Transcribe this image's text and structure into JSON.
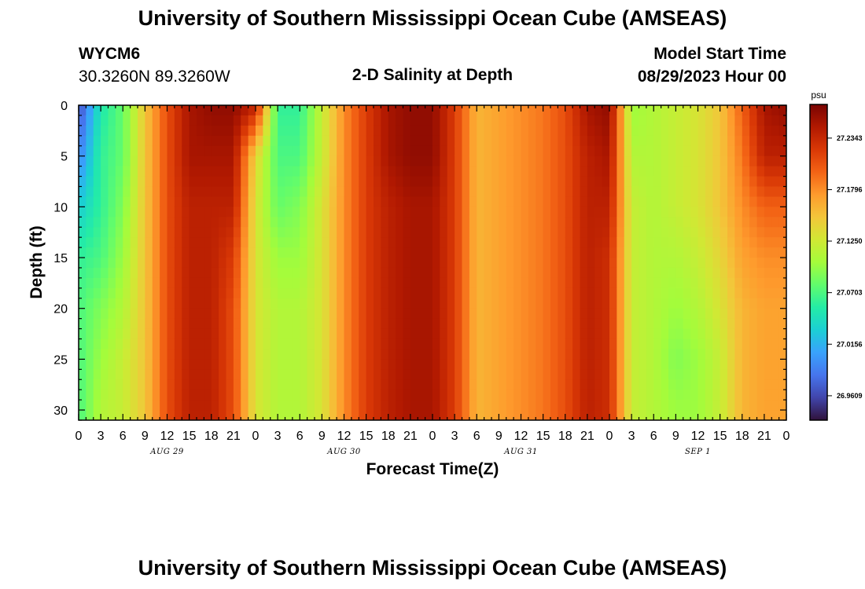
{
  "header": {
    "title": "University of Southern Mississippi Ocean Cube (AMSEAS)",
    "station_id": "WYCM6",
    "coordinates": "30.3260N  89.3260W",
    "subtitle": "2-D Salinity at Depth",
    "model_start_label": "Model Start Time",
    "model_start_value": "08/29/2023 Hour 00"
  },
  "footer": {
    "title": "University of Southern Mississippi Ocean Cube (AMSEAS)"
  },
  "colorbar": {
    "unit": "psu",
    "tick_labels": [
      "27.2343",
      "27.1796",
      "27.1250",
      "27.0703",
      "27.0156",
      "26.9609"
    ],
    "tick_values": [
      27.2343,
      27.1796,
      27.125,
      27.0703,
      27.0156,
      26.9609
    ],
    "range": [
      26.935,
      27.27
    ],
    "palette": [
      "#30123b",
      "#4145ab",
      "#4675ed",
      "#39a2fc",
      "#1bcfd4",
      "#24eca6",
      "#61fc6c",
      "#a4fc3b",
      "#d1e834",
      "#f3c63a",
      "#fe9b2d",
      "#f36315",
      "#d93806",
      "#b11901",
      "#7a0402"
    ]
  },
  "chart_data": {
    "type": "heatmap",
    "title": "2-D Salinity at Depth",
    "xlabel": "Forecast Time(Z)",
    "ylabel": "Depth (ft)",
    "x_unit": "forecast hour",
    "xlim": [
      0,
      96
    ],
    "ylim": [
      0,
      31
    ],
    "x_tick_labels": [
      "0",
      "3",
      "6",
      "9",
      "12",
      "15",
      "18",
      "21",
      "0",
      "3",
      "6",
      "9",
      "12",
      "15",
      "18",
      "21",
      "0",
      "3",
      "6",
      "9",
      "12",
      "15",
      "18",
      "21",
      "0",
      "3",
      "6",
      "9",
      "12",
      "15",
      "18",
      "21",
      "0"
    ],
    "y_tick_labels": [
      "0",
      "5",
      "10",
      "15",
      "20",
      "25",
      "30"
    ],
    "y_ticks": [
      0,
      5,
      10,
      15,
      20,
      25,
      30
    ],
    "day_labels": [
      "AUG 29",
      "AUG 30",
      "AUG 31",
      "SEP 1"
    ],
    "hours": [
      0,
      3,
      6,
      9,
      12,
      15,
      18,
      21,
      24,
      27,
      30,
      33,
      36,
      39,
      42,
      45,
      48,
      51,
      54,
      57,
      60,
      63,
      66,
      69,
      72,
      75,
      78,
      81,
      84,
      87,
      90,
      93,
      96
    ],
    "depths": [
      0,
      5,
      10,
      15,
      20,
      25,
      30
    ],
    "salinity": [
      [
        26.96,
        27.05,
        27.08,
        27.15,
        27.21,
        27.25,
        27.26,
        27.26,
        27.24,
        27.06,
        27.06,
        27.12,
        27.18,
        27.22,
        27.25,
        27.26,
        27.26,
        27.22,
        27.16,
        27.17,
        27.18,
        27.19,
        27.21,
        27.25,
        27.26,
        27.1,
        27.11,
        27.12,
        27.13,
        27.15,
        27.2,
        27.25,
        27.26
      ],
      [
        26.99,
        27.06,
        27.08,
        27.15,
        27.21,
        27.25,
        27.25,
        27.25,
        27.14,
        27.07,
        27.07,
        27.12,
        27.18,
        27.22,
        27.25,
        27.26,
        27.26,
        27.22,
        27.16,
        27.17,
        27.18,
        27.19,
        27.21,
        27.24,
        27.25,
        27.11,
        27.11,
        27.12,
        27.13,
        27.15,
        27.19,
        27.24,
        27.24
      ],
      [
        27.03,
        27.06,
        27.09,
        27.15,
        27.21,
        27.24,
        27.24,
        27.24,
        27.13,
        27.08,
        27.09,
        27.13,
        27.18,
        27.22,
        27.24,
        27.25,
        27.25,
        27.22,
        27.16,
        27.17,
        27.18,
        27.19,
        27.21,
        27.24,
        27.24,
        27.12,
        27.11,
        27.12,
        27.13,
        27.15,
        27.18,
        27.2,
        27.2
      ],
      [
        27.06,
        27.07,
        27.1,
        27.15,
        27.21,
        27.24,
        27.24,
        27.22,
        27.13,
        27.1,
        27.1,
        27.13,
        27.18,
        27.22,
        27.24,
        27.25,
        27.25,
        27.22,
        27.16,
        27.17,
        27.18,
        27.19,
        27.21,
        27.24,
        27.23,
        27.12,
        27.11,
        27.11,
        27.12,
        27.14,
        27.17,
        27.18,
        27.18
      ],
      [
        27.07,
        27.09,
        27.11,
        27.15,
        27.21,
        27.24,
        27.24,
        27.21,
        27.13,
        27.11,
        27.11,
        27.13,
        27.18,
        27.22,
        27.24,
        27.25,
        27.25,
        27.22,
        27.16,
        27.17,
        27.18,
        27.19,
        27.21,
        27.24,
        27.23,
        27.12,
        27.11,
        27.1,
        27.11,
        27.13,
        27.16,
        27.17,
        27.17
      ],
      [
        27.07,
        27.1,
        27.12,
        27.15,
        27.21,
        27.24,
        27.24,
        27.21,
        27.13,
        27.11,
        27.11,
        27.13,
        27.18,
        27.22,
        27.24,
        27.25,
        27.25,
        27.22,
        27.16,
        27.17,
        27.18,
        27.19,
        27.21,
        27.24,
        27.23,
        27.12,
        27.11,
        27.09,
        27.1,
        27.12,
        27.16,
        27.17,
        27.17
      ],
      [
        27.07,
        27.11,
        27.12,
        27.15,
        27.21,
        27.24,
        27.24,
        27.21,
        27.13,
        27.11,
        27.11,
        27.13,
        27.18,
        27.22,
        27.24,
        27.25,
        27.25,
        27.22,
        27.16,
        27.17,
        27.18,
        27.19,
        27.21,
        27.24,
        27.23,
        27.12,
        27.11,
        27.1,
        27.1,
        27.12,
        27.16,
        27.17,
        27.17
      ]
    ]
  }
}
